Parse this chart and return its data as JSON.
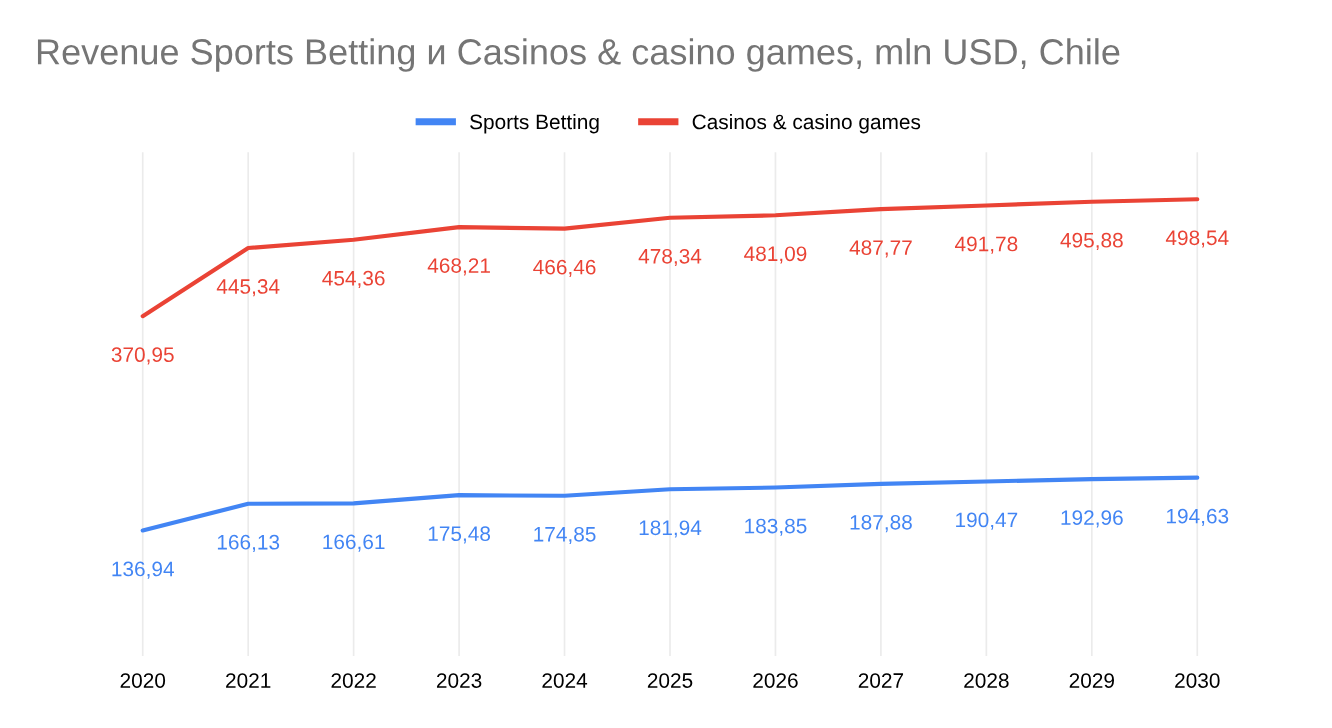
{
  "chart_data": {
    "type": "line",
    "title": "Revenue Sports Betting и Casinos & casino games, mln USD, Chile",
    "categories": [
      "2020",
      "2021",
      "2022",
      "2023",
      "2024",
      "2025",
      "2026",
      "2027",
      "2028",
      "2029",
      "2030"
    ],
    "series": [
      {
        "name": "Sports Betting",
        "color": "#4285f4",
        "values": [
          136.94,
          166.13,
          166.61,
          175.48,
          174.85,
          181.94,
          183.85,
          187.88,
          190.47,
          192.96,
          194.63
        ],
        "value_labels": [
          "136,94",
          "166,13",
          "166,61",
          "175,48",
          "174,85",
          "181,94",
          "183,85",
          "187,88",
          "190,47",
          "192,96",
          "194,63"
        ]
      },
      {
        "name": "Casinos & casino games",
        "color": "#ea4335",
        "values": [
          370.95,
          445.34,
          454.36,
          468.21,
          466.46,
          478.34,
          481.09,
          487.77,
          491.78,
          495.88,
          498.54
        ],
        "value_labels": [
          "370,95",
          "445,34",
          "454,36",
          "468,21",
          "466,46",
          "478,34",
          "481,09",
          "487,77",
          "491,78",
          "495,88",
          "498,54"
        ]
      }
    ],
    "ylim": [
      0,
      550
    ],
    "tick_labels": "x",
    "grid": "x",
    "legend": "top",
    "marker": "none",
    "line_style": "solid"
  }
}
